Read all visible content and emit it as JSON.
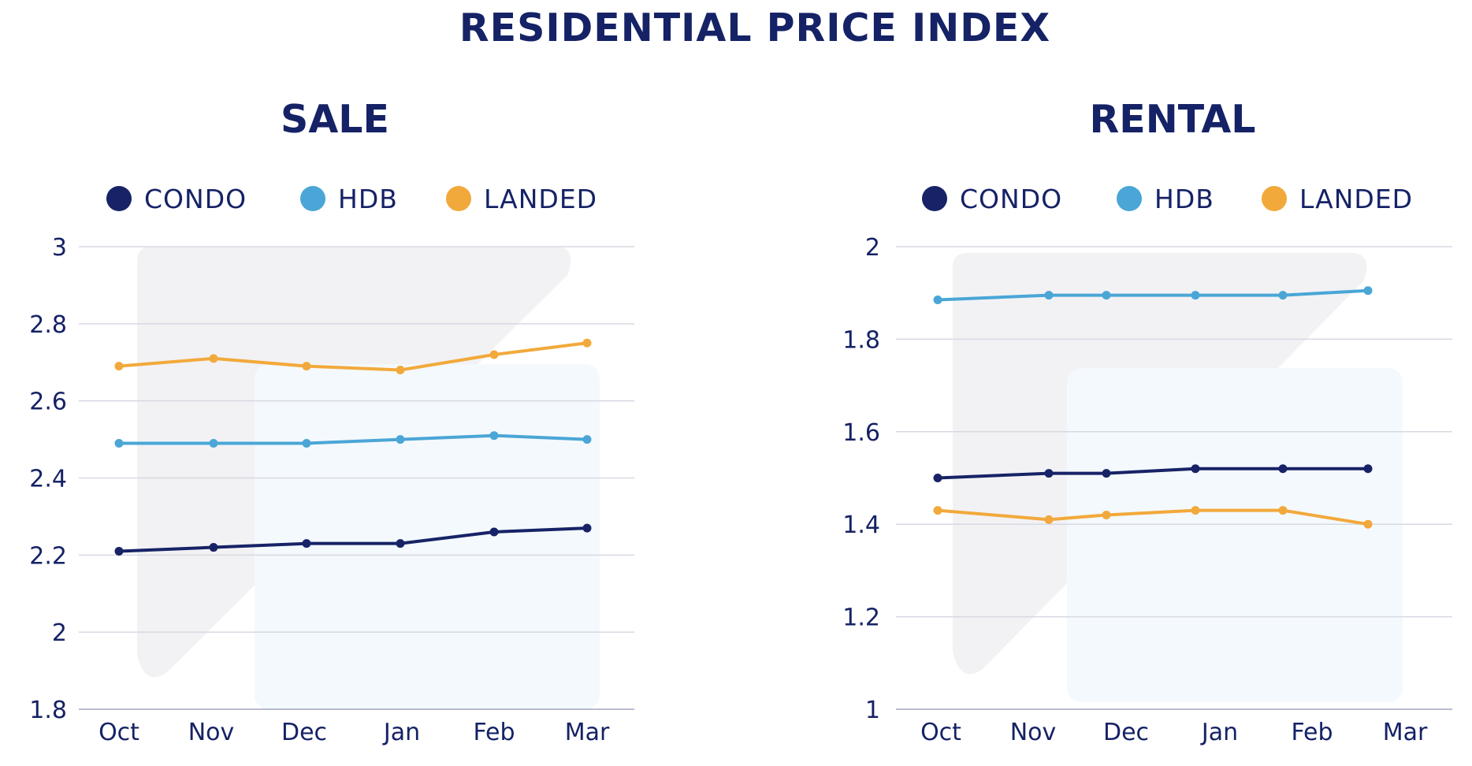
{
  "page": {
    "title": "RESIDENTIAL PRICE INDEX"
  },
  "chart_data": [
    {
      "type": "line",
      "title": "SALE",
      "categories": [
        "Oct",
        "Nov",
        "Dec",
        "Jan",
        "Feb",
        "Mar"
      ],
      "ylim": [
        1.8,
        3
      ],
      "yticks": [
        "1.8",
        "2",
        "2.2",
        "2.4",
        "2.6",
        "2.8",
        "3"
      ],
      "grid": true,
      "legend_position": "top",
      "xlabel": "",
      "ylabel": "",
      "series": [
        {
          "name": "CONDO",
          "color": "#172366",
          "values": [
            2.21,
            2.22,
            2.23,
            2.23,
            2.26,
            2.27
          ]
        },
        {
          "name": "HDB",
          "color": "#4aa6d6",
          "values": [
            2.49,
            2.49,
            2.49,
            2.5,
            2.51,
            2.5
          ]
        },
        {
          "name": "LANDED",
          "color": "#f2a93b",
          "values": [
            2.69,
            2.71,
            2.69,
            2.68,
            2.72,
            2.75
          ]
        }
      ]
    },
    {
      "type": "line",
      "title": "RENTAL",
      "categories": [
        "Oct",
        "Nov",
        "Dec",
        "Jan",
        "Feb",
        "Mar"
      ],
      "ylim": [
        1,
        2
      ],
      "yticks": [
        "1",
        "1.2",
        "1.4",
        "1.6",
        "1.8",
        "2"
      ],
      "grid": true,
      "legend_position": "top",
      "xlabel": "",
      "ylabel": "",
      "series": [
        {
          "name": "CONDO",
          "color": "#172366",
          "values": [
            1.5,
            1.51,
            1.51,
            1.52,
            1.52,
            1.52
          ]
        },
        {
          "name": "HDB",
          "color": "#4aa6d6",
          "values": [
            1.885,
            1.895,
            1.895,
            1.895,
            1.895,
            1.905
          ]
        },
        {
          "name": "LANDED",
          "color": "#f2a93b",
          "values": [
            1.43,
            1.41,
            1.42,
            1.43,
            1.43,
            1.4
          ]
        }
      ]
    }
  ]
}
